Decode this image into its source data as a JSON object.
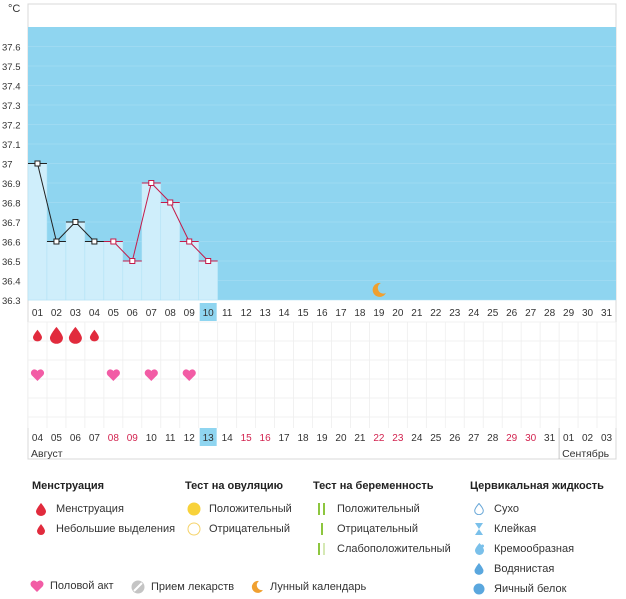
{
  "chart_data": {
    "type": "line",
    "unit_label": "°C",
    "y_ticks": [
      "37.6",
      "37.5",
      "37.4",
      "37.3",
      "37.2",
      "37.1",
      "37",
      "36.9",
      "36.8",
      "36.7",
      "36.6",
      "36.5",
      "36.4",
      "36.3"
    ],
    "ylim": [
      36.3,
      37.7
    ],
    "cycle_days": [
      "01",
      "02",
      "03",
      "04",
      "05",
      "06",
      "07",
      "08",
      "09",
      "10",
      "11",
      "12",
      "13",
      "14",
      "15",
      "16",
      "17",
      "18",
      "19",
      "20",
      "21",
      "22",
      "23",
      "24",
      "25",
      "26",
      "27",
      "28",
      "29",
      "30",
      "31"
    ],
    "current_cycle_day": "10",
    "temperatures": [
      37.0,
      36.6,
      36.7,
      36.6,
      36.6,
      36.5,
      36.9,
      36.8,
      36.6,
      36.5
    ],
    "marker_style": [
      "black",
      "black",
      "black",
      "black",
      "pink",
      "pink",
      "pink",
      "pink",
      "pink",
      "pink"
    ],
    "segment_colors": [
      "#222222",
      "#222222",
      "#222222",
      "#c51b4a",
      "#c51b4a",
      "#c51b4a",
      "#c51b4a",
      "#c51b4a",
      "#c51b4a"
    ],
    "moon_cycle_day": 19,
    "menstruation": [
      {
        "day": 1,
        "kind": "light"
      },
      {
        "day": 2,
        "kind": "heavy"
      },
      {
        "day": 3,
        "kind": "heavy"
      },
      {
        "day": 4,
        "kind": "light"
      }
    ],
    "intercourse_days": [
      1,
      5,
      7,
      9
    ],
    "calendar_dates": [
      "04",
      "05",
      "06",
      "07",
      "08",
      "09",
      "10",
      "11",
      "12",
      "13",
      "14",
      "15",
      "16",
      "17",
      "18",
      "19",
      "20",
      "21",
      "22",
      "23",
      "24",
      "25",
      "26",
      "27",
      "28",
      "29",
      "30",
      "31",
      "01",
      "02",
      "03"
    ],
    "weekend_dates": [
      "08",
      "09",
      "15",
      "16",
      "22",
      "23",
      "29",
      "30"
    ],
    "today_date": "13",
    "month_labels": [
      "Август",
      "Сентябрь"
    ],
    "colors": {
      "bg_blue": "#8fd5f0",
      "bar_fill": "#cfeefb",
      "red": "#e12b3d",
      "pink": "#f25ca5",
      "moon": "#f0a030",
      "weekend": "#d2234f",
      "today_box": "#8fd5f0"
    }
  },
  "legend": {
    "menstruation": {
      "title": "Менструация",
      "items": [
        "Менструация",
        "Небольшие выделения"
      ]
    },
    "ovulation": {
      "title": "Тест на овуляцию",
      "items": [
        "Положительный",
        "Отрицательный"
      ]
    },
    "pregnancy": {
      "title": "Тест на беременность",
      "items": [
        "Положительный",
        "Отрицательный",
        "Слабоположительный"
      ]
    },
    "cervical": {
      "title": "Цервикальная жидкость",
      "items": [
        "Сухо",
        "Клейкая",
        "Кремообразная",
        "Водянистая",
        "Яичный белок"
      ]
    }
  },
  "bottom_legend": {
    "intercourse": "Половой акт",
    "medication": "Прием лекарств",
    "lunar": "Лунный календарь"
  }
}
